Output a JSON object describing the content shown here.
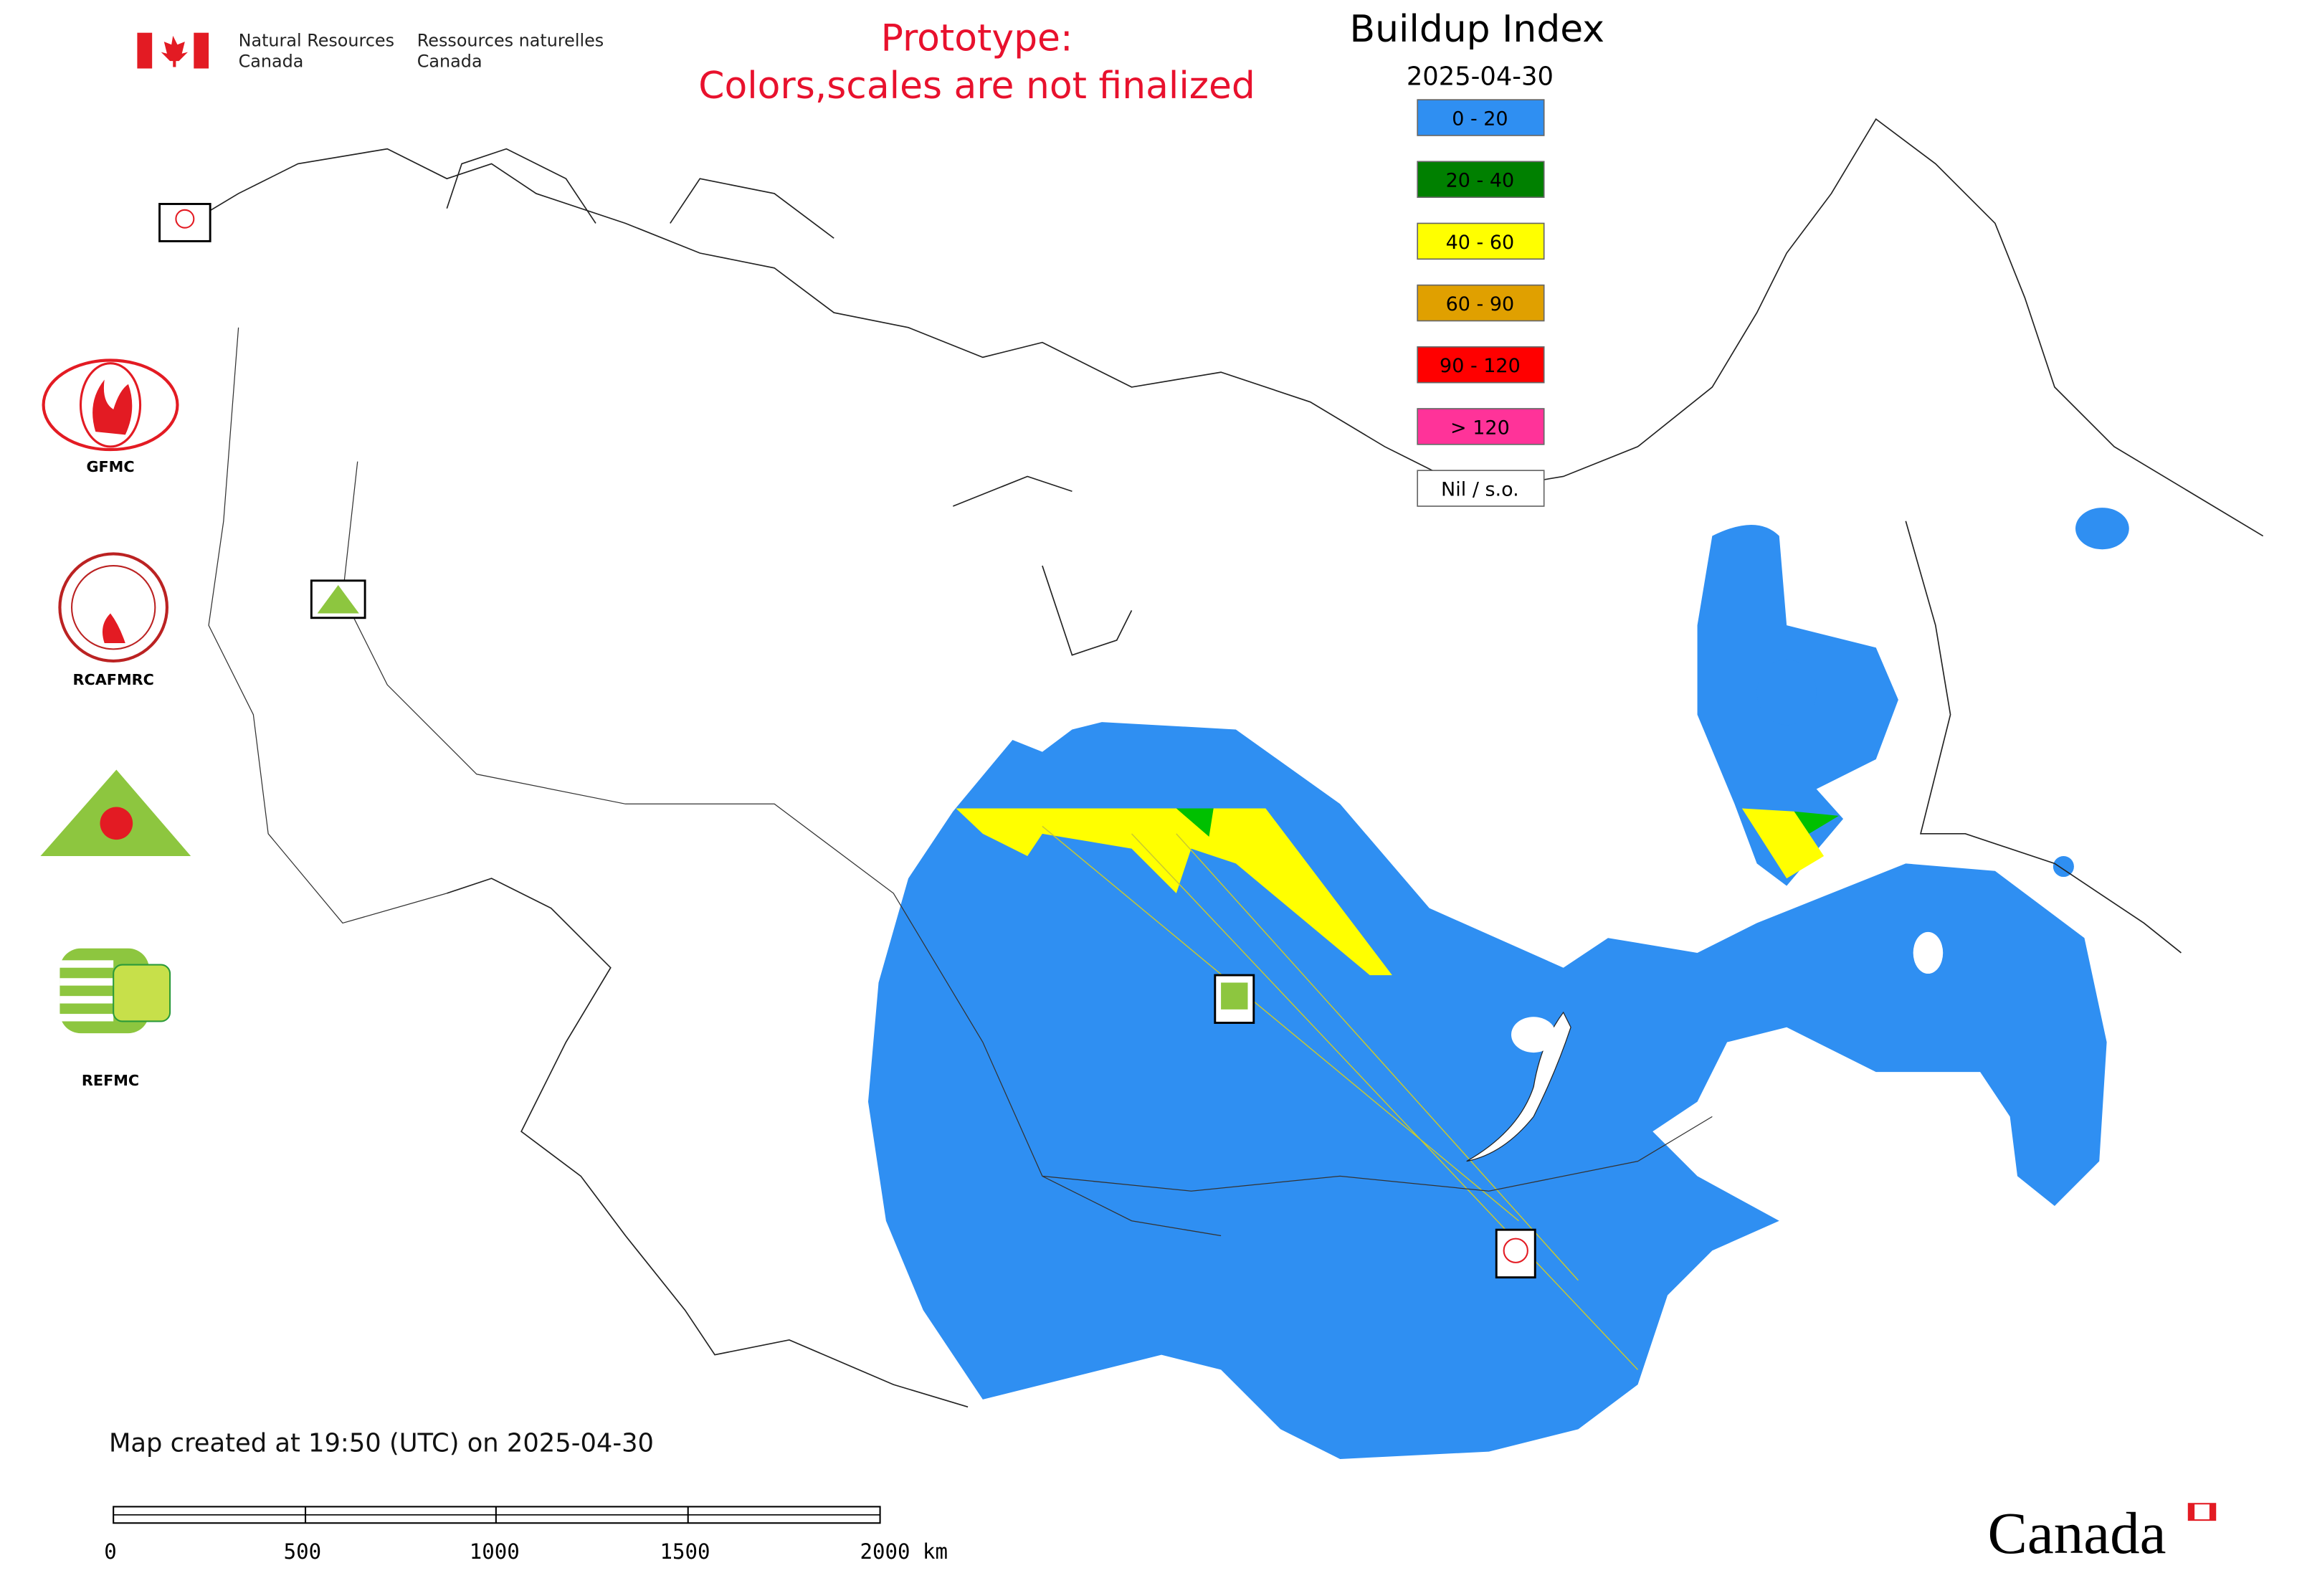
{
  "header": {
    "dept_en": [
      "Natural Resources",
      "Canada"
    ],
    "dept_fr": [
      "Ressources naturelles",
      "Canada"
    ]
  },
  "notice": [
    "Prototype:",
    "Colors,scales are not finalized"
  ],
  "legend": {
    "title": "Buildup Index",
    "date": "2025-04-30",
    "items": [
      {
        "label": "0 - 20",
        "color": "#2f8ff2"
      },
      {
        "label": "20 - 40",
        "color": "#008000"
      },
      {
        "label": "40 - 60",
        "color": "#ffff00"
      },
      {
        "label": "60 - 90",
        "color": "#e0a000"
      },
      {
        "label": "90 - 120",
        "color": "#ff0000"
      },
      {
        "label": "> 120",
        "color": "#ff3399"
      },
      {
        "label": "Nil / s.o.",
        "color": "#ffffff"
      }
    ]
  },
  "logos": [
    "GFMC",
    "RCAFMRC",
    "REFMC"
  ],
  "footer": {
    "created": "Map created at 19:50 (UTC) on 2025-04-30",
    "scale_labels": [
      "0",
      "500",
      "1000",
      "1500",
      "2000 km"
    ]
  },
  "wordmark": "Canada"
}
